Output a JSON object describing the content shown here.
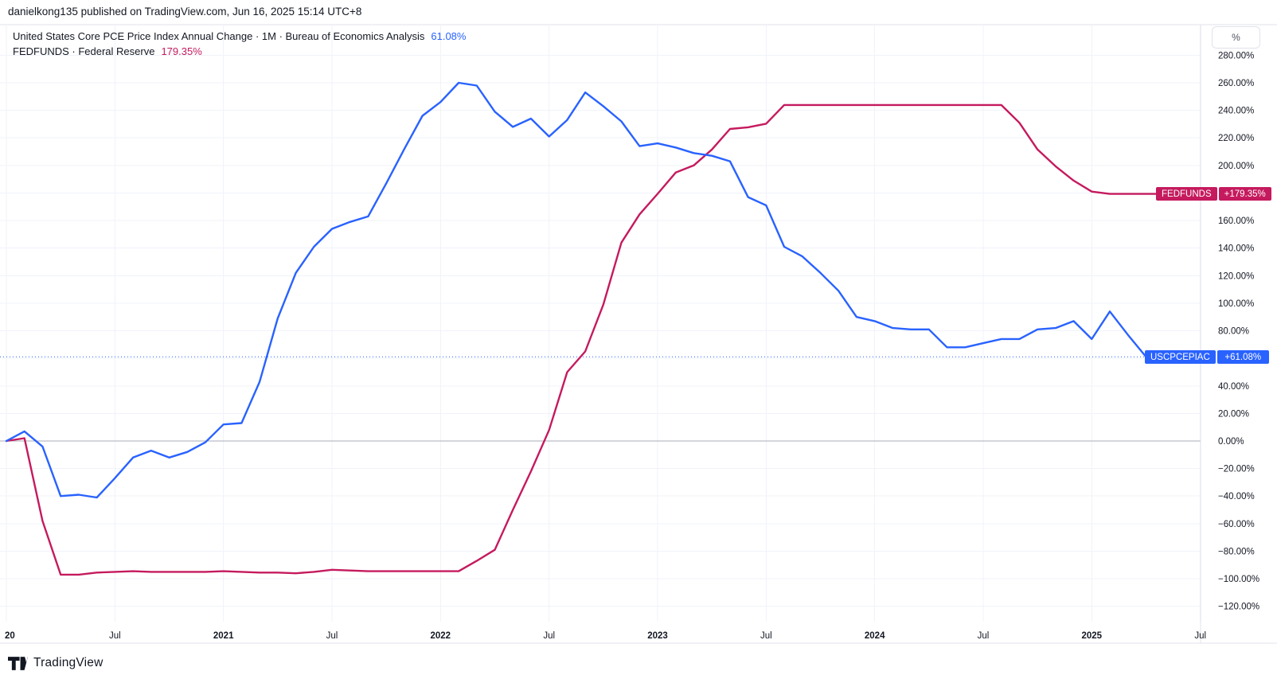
{
  "header": {
    "publish_line": "danielkong135 published on TradingView.com, Jun 16, 2025 15:14 UTC+8"
  },
  "legend": {
    "series": [
      {
        "title": "United States Core PCE Price Index Annual Change · 1M · Bureau of Economics Analysis",
        "value": "61.08%"
      },
      {
        "title": "FEDFUNDS · Federal Reserve",
        "value": "179.35%"
      }
    ]
  },
  "price_axis": {
    "percent_button": "%",
    "ticks": [
      {
        "v": 280,
        "label": "280.00%"
      },
      {
        "v": 260,
        "label": "260.00%"
      },
      {
        "v": 240,
        "label": "240.00%"
      },
      {
        "v": 220,
        "label": "220.00%"
      },
      {
        "v": 200,
        "label": "200.00%"
      },
      {
        "v": 180,
        "label": "180.00%"
      },
      {
        "v": 160,
        "label": "160.00%"
      },
      {
        "v": 140,
        "label": "140.00%"
      },
      {
        "v": 120,
        "label": "120.00%"
      },
      {
        "v": 100,
        "label": "100.00%"
      },
      {
        "v": 80,
        "label": "80.00%"
      },
      {
        "v": 60,
        "label": "60.00%"
      },
      {
        "v": 40,
        "label": "40.00%"
      },
      {
        "v": 20,
        "label": "20.00%"
      },
      {
        "v": 0,
        "label": "0.00%"
      },
      {
        "v": -20,
        "label": "−20.00%"
      },
      {
        "v": -40,
        "label": "−40.00%"
      },
      {
        "v": -60,
        "label": "−60.00%"
      },
      {
        "v": -80,
        "label": "−80.00%"
      },
      {
        "v": -100,
        "label": "−100.00%"
      },
      {
        "v": -120,
        "label": "−120.00%"
      }
    ]
  },
  "time_axis": {
    "ticks": [
      {
        "label": "20",
        "month": 0,
        "bold": true
      },
      {
        "label": "Jul",
        "month": 6,
        "bold": false
      },
      {
        "label": "2021",
        "month": 12,
        "bold": true
      },
      {
        "label": "Jul",
        "month": 18,
        "bold": false
      },
      {
        "label": "2022",
        "month": 24,
        "bold": true
      },
      {
        "label": "Jul",
        "month": 30,
        "bold": false
      },
      {
        "label": "2023",
        "month": 36,
        "bold": true
      },
      {
        "label": "Jul",
        "month": 42,
        "bold": false
      },
      {
        "label": "2024",
        "month": 48,
        "bold": true
      },
      {
        "label": "Jul",
        "month": 54,
        "bold": false
      },
      {
        "label": "2025",
        "month": 60,
        "bold": true
      },
      {
        "label": "Jul",
        "month": 66,
        "bold": false
      }
    ]
  },
  "badges": {
    "fedfunds": {
      "label": "FEDFUNDS",
      "value": "+179.35%"
    },
    "uscpcepiac": {
      "label": "USCPCEPIAC",
      "value": "+61.08%"
    }
  },
  "footer": {
    "brand": "TradingView"
  },
  "colors": {
    "blue": "#2962FF",
    "pink": "#C51A5E",
    "text": "#131722",
    "grid": "#F0F3FA",
    "zero_line": "#A8ACB8",
    "separator": "#E0E3EB"
  },
  "chart_data": {
    "type": "line",
    "title": "United States Core PCE Price Index Annual Change vs FEDFUNDS, percent change",
    "x_start": "2020-01",
    "x_interval": "1M",
    "xlabel": "",
    "ylabel": "%",
    "ylim": [
      -130,
      292
    ],
    "y_tick_step": 20,
    "grid": true,
    "legend_position": "top-left",
    "series": [
      {
        "name": "USCPCEPIAC",
        "description": "United States Core PCE Price Index Annual Change · 1M · Bureau of Economics Analysis (% change)",
        "color": "#2962FF",
        "last_value": 61.08,
        "values": [
          0,
          7,
          -4,
          -40,
          -39,
          -41,
          -27,
          -12,
          -7,
          -12,
          -8,
          -1,
          12,
          13,
          43,
          89,
          122,
          141,
          154,
          159,
          163,
          187,
          212,
          236,
          246,
          260,
          258,
          239,
          228,
          234,
          221,
          233,
          253,
          243,
          232,
          214,
          216,
          213,
          209,
          207,
          203,
          177,
          171,
          141,
          134,
          122,
          109,
          90,
          87,
          82,
          81,
          81,
          68,
          68,
          71,
          74,
          74,
          81,
          82,
          87,
          74,
          94,
          77,
          61.08
        ]
      },
      {
        "name": "FEDFUNDS",
        "description": "FEDFUNDS · Federal Reserve (% change)",
        "color": "#C51A5E",
        "last_value": 179.35,
        "values": [
          0,
          2,
          -58,
          -97,
          -97,
          -95.5,
          -95,
          -94.5,
          -95,
          -95,
          -95,
          -95,
          -94.5,
          -95,
          -95.5,
          -95.5,
          -96,
          -95,
          -93.5,
          -94,
          -94.5,
          -94.5,
          -94.5,
          -94.5,
          -94.5,
          -94.5,
          -87,
          -79,
          -50,
          -22,
          8,
          50,
          65,
          99,
          144,
          164.5,
          179.4,
          194.8,
          200,
          211.6,
          226.5,
          227.7,
          230.3,
          243.9,
          243.9,
          243.9,
          243.9,
          243.9,
          243.9,
          243.9,
          243.9,
          243.9,
          243.9,
          243.9,
          243.9,
          243.9,
          231,
          211.6,
          199.4,
          189,
          181,
          179.35,
          179.35,
          179.35,
          179.35
        ]
      }
    ]
  }
}
